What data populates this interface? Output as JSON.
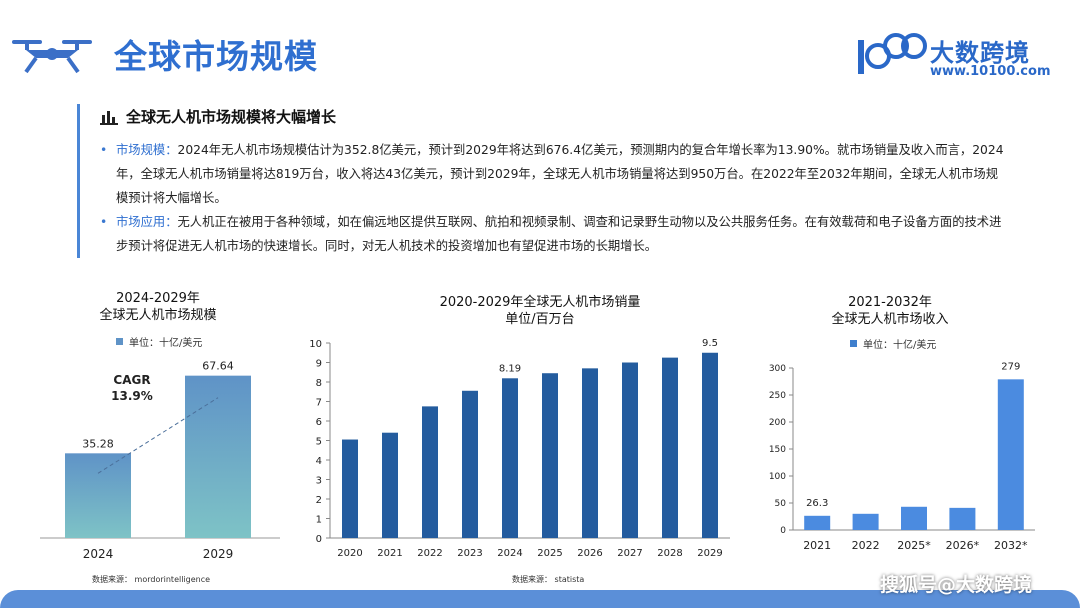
{
  "header": {
    "title": "全球市场规模",
    "logo_brand": "大数跨境",
    "logo_url": "www.10100.com",
    "logo_digits": "100"
  },
  "section": {
    "heading": "全球无人机市场规模将大幅增长",
    "bullets": [
      {
        "keyword": "市场规模：",
        "text": "2024年无人机市场规模估计为352.8亿美元，预计到2029年将达到676.4亿美元，预测期内的复合年增长率为13.90%。就市场销量及收入而言，2024年，全球无人机市场销量将达819万台，收入将达43亿美元，预计到2029年，全球无人机市场销量将达到950万台。在2022年至2032年期间，全球无人机市场规模预计将大幅增长。"
      },
      {
        "keyword": "市场应用：",
        "text": "无人机正在被用于各种领域，如在偏远地区提供互联网、航拍和视频录制、调查和记录野生动物以及公共服务任务。在有效载荷和电子设备方面的技术进步预计将促进无人机市场的快速增长。同时，对无人机技术的投资增加也有望促进市场的长期增长。"
      }
    ]
  },
  "chart_data": [
    {
      "type": "bar",
      "title_line1": "2024-2029年",
      "title_line2": "全球无人机市场规模",
      "legend": "单位：十亿/美元",
      "categories": [
        "2024",
        "2029"
      ],
      "values": [
        35.28,
        67.64
      ],
      "value_labels": [
        "35.28",
        "67.64"
      ],
      "annotation_line1": "CAGR",
      "annotation_line2": "13.9%",
      "source": "数据来源：  mordorintelligence",
      "colors": {
        "bar_top": "#5f93c7",
        "bar_bottom": "#7ec3c6"
      }
    },
    {
      "type": "bar",
      "title_line1": "2020-2029年全球无人机市场销量",
      "title_line2": "单位/百万台",
      "categories": [
        "2020",
        "2021",
        "2022",
        "2023",
        "2024",
        "2025",
        "2026",
        "2027",
        "2028",
        "2029"
      ],
      "values": [
        5.05,
        5.4,
        6.75,
        7.55,
        8.19,
        8.45,
        8.7,
        9.0,
        9.25,
        9.5
      ],
      "labeled": {
        "2024": "8.19",
        "2029": "9.5"
      },
      "ylim": [
        0,
        10
      ],
      "yticks": [
        "0",
        "1",
        "2",
        "3",
        "4",
        "5",
        "6",
        "7",
        "8",
        "9",
        "10"
      ],
      "source": "数据来源：  statista",
      "colors": {
        "bar": "#245c9e"
      }
    },
    {
      "type": "bar",
      "title_line1": "2021-2032年",
      "title_line2": "全球无人机市场收入",
      "legend": "单位：十亿/美元",
      "categories": [
        "2021",
        "2022",
        "2025*",
        "2026*",
        "2032*"
      ],
      "values": [
        26.3,
        30,
        43,
        41,
        279
      ],
      "labeled": {
        "2021": "26.3",
        "2032*": "279"
      },
      "ylim": [
        0,
        300
      ],
      "yticks": [
        "0",
        "50",
        "100",
        "150",
        "200",
        "250",
        "300"
      ],
      "colors": {
        "bar": "#4b8be0"
      }
    }
  ],
  "watermark": "搜狐号@大数跨境"
}
